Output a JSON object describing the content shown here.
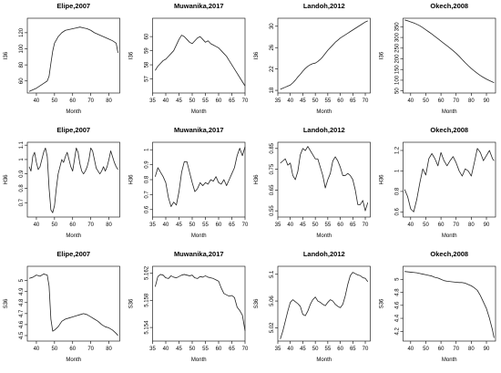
{
  "chart_data": [
    {
      "type": "line",
      "title": "Elipe,2007",
      "xlabel": "Month",
      "ylabel": "I36",
      "xlim": [
        35,
        86
      ],
      "ylim": [
        45,
        138
      ],
      "xticks": [
        40,
        50,
        60,
        70,
        80
      ],
      "yticks": [
        60,
        80,
        100,
        120
      ],
      "x": [
        36,
        38,
        40,
        42,
        44,
        46,
        47,
        48,
        49,
        50,
        52,
        54,
        56,
        58,
        60,
        62,
        64,
        66,
        68,
        70,
        72,
        74,
        76,
        78,
        80,
        82,
        84,
        85
      ],
      "y": [
        47,
        49,
        51,
        54,
        57,
        60,
        66,
        82,
        97,
        107,
        115,
        120,
        123,
        124,
        125,
        126,
        127,
        126,
        125,
        123,
        120,
        118,
        116,
        114,
        112,
        110,
        107,
        95
      ]
    },
    {
      "type": "line",
      "title": "Muwanika,2017",
      "xlabel": "Month",
      "ylabel": "I36",
      "xlim": [
        35,
        70
      ],
      "ylim": [
        56,
        61.3
      ],
      "xticks": [
        35,
        40,
        45,
        50,
        55,
        60,
        65,
        70
      ],
      "yticks": [
        57,
        58,
        59,
        60
      ],
      "x": [
        36,
        37,
        38,
        39,
        40,
        41,
        42,
        43,
        44,
        45,
        46,
        47,
        48,
        49,
        50,
        51,
        52,
        53,
        54,
        55,
        56,
        57,
        58,
        59,
        60,
        61,
        62,
        63,
        64,
        65,
        66,
        67,
        68,
        69,
        70
      ],
      "y": [
        57.6,
        57.9,
        58.1,
        58.3,
        58.4,
        58.6,
        58.8,
        59.0,
        59.4,
        59.8,
        60.1,
        60.0,
        59.8,
        59.6,
        59.5,
        59.7,
        59.9,
        60.0,
        59.8,
        59.6,
        59.7,
        59.5,
        59.4,
        59.3,
        59.2,
        59.0,
        58.8,
        58.6,
        58.3,
        58.0,
        57.7,
        57.4,
        57.1,
        56.8,
        56.5
      ]
    },
    {
      "type": "line",
      "title": "Landoh,2012",
      "xlabel": "Month",
      "ylabel": "I36",
      "xlim": [
        35,
        72
      ],
      "ylim": [
        17.5,
        31.5
      ],
      "xticks": [
        35,
        40,
        45,
        50,
        55,
        60,
        65,
        70
      ],
      "yticks": [
        18,
        22,
        26,
        30
      ],
      "x": [
        36,
        37,
        38,
        39,
        40,
        41,
        42,
        43,
        44,
        45,
        46,
        47,
        48,
        49,
        50,
        51,
        52,
        53,
        54,
        55,
        56,
        57,
        58,
        59,
        60,
        61,
        62,
        63,
        64,
        65,
        66,
        67,
        68,
        69,
        70,
        71
      ],
      "y": [
        18.2,
        18.4,
        18.6,
        18.8,
        19.0,
        19.4,
        19.9,
        20.5,
        21.0,
        21.6,
        22.1,
        22.5,
        22.8,
        23.0,
        23.1,
        23.4,
        23.8,
        24.3,
        24.9,
        25.5,
        26.0,
        26.5,
        27.0,
        27.4,
        27.8,
        28.1,
        28.4,
        28.7,
        29.0,
        29.3,
        29.6,
        29.9,
        30.2,
        30.5,
        30.8,
        31.0
      ]
    },
    {
      "type": "line",
      "title": "Okech,2008",
      "xlabel": "Month",
      "ylabel": "I36",
      "xlim": [
        35,
        96
      ],
      "ylim": [
        40,
        390
      ],
      "xticks": [
        40,
        50,
        60,
        70,
        80,
        90
      ],
      "yticks": [
        50,
        100,
        150,
        200,
        250,
        300,
        350
      ],
      "x": [
        36,
        38,
        40,
        42,
        44,
        46,
        48,
        50,
        52,
        54,
        56,
        58,
        60,
        62,
        64,
        66,
        68,
        70,
        72,
        74,
        76,
        78,
        80,
        82,
        84,
        86,
        88,
        90,
        92,
        94,
        95
      ],
      "y": [
        382,
        378,
        373,
        368,
        362,
        355,
        346,
        336,
        326,
        316,
        305,
        294,
        283,
        272,
        261,
        250,
        238,
        226,
        212,
        197,
        182,
        168,
        155,
        143,
        132,
        122,
        113,
        105,
        98,
        92,
        88
      ]
    },
    {
      "type": "line",
      "title": "Elipe,2007",
      "xlabel": "Month",
      "ylabel": "H36",
      "xlim": [
        35,
        86
      ],
      "ylim": [
        0.6,
        1.12
      ],
      "xticks": [
        40,
        50,
        60,
        70,
        80
      ],
      "yticks": [
        0.7,
        0.8,
        0.9,
        1.0,
        1.1
      ],
      "x": [
        36,
        37,
        38,
        39,
        40,
        41,
        42,
        43,
        44,
        45,
        46,
        47,
        48,
        49,
        50,
        51,
        52,
        53,
        54,
        55,
        56,
        57,
        58,
        59,
        60,
        61,
        62,
        63,
        64,
        65,
        66,
        67,
        68,
        69,
        70,
        71,
        72,
        73,
        74,
        75,
        76,
        77,
        78,
        79,
        80,
        81,
        82,
        83,
        84,
        85
      ],
      "y": [
        0.95,
        0.92,
        1.02,
        1.05,
        0.98,
        0.93,
        0.95,
        1.0,
        1.05,
        1.08,
        1.02,
        0.8,
        0.65,
        0.63,
        0.68,
        0.8,
        0.9,
        0.95,
        1.0,
        0.98,
        1.02,
        1.05,
        1.0,
        0.95,
        0.92,
        1.0,
        1.08,
        1.05,
        0.97,
        0.92,
        0.9,
        0.92,
        0.95,
        1.0,
        1.08,
        1.06,
        1.0,
        0.94,
        0.92,
        0.9,
        0.92,
        0.95,
        0.92,
        0.95,
        1.0,
        1.06,
        1.02,
        0.98,
        0.95,
        0.93
      ]
    },
    {
      "type": "line",
      "title": "Muwanika,2017",
      "xlabel": "Month",
      "ylabel": "H36",
      "xlim": [
        35,
        70
      ],
      "ylim": [
        0.55,
        1.05
      ],
      "xticks": [
        35,
        40,
        45,
        50,
        55,
        60,
        65,
        70
      ],
      "yticks": [
        0.6,
        0.7,
        0.8,
        0.9,
        1.0
      ],
      "x": [
        36,
        37,
        38,
        39,
        40,
        41,
        42,
        43,
        44,
        45,
        46,
        47,
        48,
        49,
        50,
        51,
        52,
        53,
        54,
        55,
        56,
        57,
        58,
        59,
        60,
        61,
        62,
        63,
        64,
        65,
        66,
        67,
        68,
        69,
        70
      ],
      "y": [
        0.82,
        0.88,
        0.85,
        0.82,
        0.78,
        0.68,
        0.62,
        0.65,
        0.63,
        0.72,
        0.85,
        0.92,
        0.92,
        0.85,
        0.78,
        0.72,
        0.74,
        0.78,
        0.76,
        0.78,
        0.77,
        0.8,
        0.79,
        0.82,
        0.78,
        0.77,
        0.8,
        0.76,
        0.8,
        0.84,
        0.88,
        0.96,
        1.01,
        0.96,
        1.02
      ]
    },
    {
      "type": "line",
      "title": "Landoh,2012",
      "xlabel": "Month",
      "ylabel": "H36",
      "xlim": [
        35,
        72
      ],
      "ylim": [
        0.52,
        0.88
      ],
      "xticks": [
        35,
        40,
        45,
        50,
        55,
        60,
        65,
        70
      ],
      "yticks": [
        0.55,
        0.65,
        0.75,
        0.85
      ],
      "x": [
        36,
        37,
        38,
        39,
        40,
        41,
        42,
        43,
        44,
        45,
        46,
        47,
        48,
        49,
        50,
        51,
        52,
        53,
        54,
        55,
        56,
        57,
        58,
        59,
        60,
        61,
        62,
        63,
        64,
        65,
        66,
        67,
        68,
        69,
        70,
        71
      ],
      "y": [
        0.78,
        0.79,
        0.8,
        0.77,
        0.78,
        0.72,
        0.7,
        0.74,
        0.82,
        0.85,
        0.84,
        0.86,
        0.84,
        0.82,
        0.8,
        0.8,
        0.76,
        0.72,
        0.66,
        0.7,
        0.73,
        0.79,
        0.81,
        0.79,
        0.76,
        0.72,
        0.72,
        0.73,
        0.72,
        0.7,
        0.65,
        0.58,
        0.58,
        0.6,
        0.55,
        0.59
      ]
    },
    {
      "type": "line",
      "title": "Okech,2008",
      "xlabel": "Month",
      "ylabel": "H36",
      "xlim": [
        35,
        96
      ],
      "ylim": [
        0.55,
        1.28
      ],
      "xticks": [
        40,
        50,
        60,
        70,
        80,
        90
      ],
      "yticks": [
        0.6,
        0.8,
        1.0,
        1.2
      ],
      "x": [
        36,
        38,
        40,
        42,
        44,
        46,
        48,
        50,
        52,
        54,
        56,
        58,
        60,
        62,
        64,
        66,
        68,
        70,
        72,
        74,
        76,
        78,
        80,
        82,
        84,
        86,
        88,
        90,
        92,
        94,
        95
      ],
      "y": [
        0.82,
        0.75,
        0.63,
        0.6,
        0.72,
        0.88,
        1.02,
        0.96,
        1.12,
        1.17,
        1.12,
        1.05,
        1.18,
        1.1,
        1.05,
        1.1,
        1.14,
        1.08,
        1.0,
        0.95,
        1.02,
        1.0,
        0.95,
        1.08,
        1.22,
        1.18,
        1.1,
        1.15,
        1.2,
        1.12,
        1.1
      ]
    },
    {
      "type": "line",
      "title": "Elipe,2007",
      "xlabel": "Month",
      "ylabel": "S36",
      "xlim": [
        35,
        86
      ],
      "ylim": [
        4.45,
        5.13
      ],
      "xticks": [
        40,
        50,
        60,
        70,
        80
      ],
      "yticks": [
        4.5,
        4.6,
        4.7,
        4.8,
        4.9,
        5.0
      ],
      "x": [
        36,
        38,
        40,
        42,
        44,
        46,
        47,
        48,
        49,
        50,
        52,
        54,
        56,
        58,
        60,
        62,
        64,
        66,
        68,
        70,
        72,
        74,
        76,
        78,
        80,
        82,
        84,
        85
      ],
      "y": [
        5.02,
        5.03,
        5.05,
        5.04,
        5.06,
        5.05,
        4.95,
        4.65,
        4.54,
        4.55,
        4.58,
        4.63,
        4.65,
        4.66,
        4.67,
        4.68,
        4.69,
        4.7,
        4.69,
        4.67,
        4.65,
        4.63,
        4.6,
        4.58,
        4.57,
        4.55,
        4.52,
        4.5
      ]
    },
    {
      "type": "line",
      "title": "Muwanika,2017",
      "xlabel": "Month",
      "ylabel": "S36",
      "xlim": [
        35,
        70
      ],
      "ylim": [
        5.152,
        5.163
      ],
      "xticks": [
        35,
        40,
        45,
        50,
        55,
        60,
        65,
        70
      ],
      "yticks": [
        5.154,
        5.158,
        5.162
      ],
      "x": [
        36,
        37,
        38,
        39,
        40,
        41,
        42,
        43,
        44,
        45,
        46,
        47,
        48,
        49,
        50,
        51,
        52,
        53,
        54,
        55,
        56,
        57,
        58,
        59,
        60,
        61,
        62,
        63,
        64,
        65,
        66,
        67,
        68,
        69,
        70
      ],
      "y": [
        5.16,
        5.1615,
        5.1618,
        5.1617,
        5.1613,
        5.1612,
        5.1616,
        5.1614,
        5.1613,
        5.1615,
        5.1617,
        5.1618,
        5.1617,
        5.1616,
        5.1617,
        5.1613,
        5.1612,
        5.1615,
        5.1614,
        5.1616,
        5.1614,
        5.1613,
        5.1612,
        5.161,
        5.1608,
        5.1598,
        5.159,
        5.1588,
        5.1586,
        5.1587,
        5.1584,
        5.157,
        5.1565,
        5.1558,
        5.1535
      ]
    },
    {
      "type": "line",
      "title": "Landoh,2012",
      "xlabel": "Month",
      "ylabel": "S36",
      "xlim": [
        35,
        72
      ],
      "ylim": [
        5.0,
        5.112
      ],
      "xticks": [
        35,
        40,
        45,
        50,
        55,
        60,
        65,
        70
      ],
      "yticks": [
        5.02,
        5.06,
        5.1
      ],
      "x": [
        36,
        37,
        38,
        39,
        40,
        41,
        42,
        43,
        44,
        45,
        46,
        47,
        48,
        49,
        50,
        51,
        52,
        53,
        54,
        55,
        56,
        57,
        58,
        59,
        60,
        61,
        62,
        63,
        64,
        65,
        66,
        67,
        68,
        69,
        70,
        71
      ],
      "y": [
        5.003,
        5.015,
        5.03,
        5.045,
        5.058,
        5.062,
        5.059,
        5.056,
        5.052,
        5.04,
        5.038,
        5.045,
        5.055,
        5.062,
        5.066,
        5.06,
        5.058,
        5.055,
        5.053,
        5.058,
        5.062,
        5.06,
        5.055,
        5.052,
        5.05,
        5.055,
        5.068,
        5.085,
        5.098,
        5.103,
        5.101,
        5.099,
        5.098,
        5.095,
        5.094,
        5.089
      ]
    },
    {
      "type": "line",
      "title": "Okech,2008",
      "xlabel": "Month",
      "ylabel": "S36",
      "xlim": [
        35,
        96
      ],
      "ylim": [
        4.05,
        5.2
      ],
      "xticks": [
        40,
        50,
        60,
        70,
        80,
        90
      ],
      "yticks": [
        4.2,
        4.4,
        4.6,
        4.8,
        5.0
      ],
      "x": [
        36,
        38,
        40,
        42,
        44,
        46,
        48,
        50,
        52,
        54,
        56,
        58,
        60,
        62,
        64,
        66,
        68,
        70,
        72,
        74,
        76,
        78,
        80,
        82,
        84,
        86,
        88,
        90,
        92,
        94,
        95
      ],
      "y": [
        5.12,
        5.115,
        5.11,
        5.105,
        5.1,
        5.09,
        5.08,
        5.07,
        5.06,
        5.05,
        5.03,
        5.02,
        5.0,
        4.98,
        4.97,
        4.965,
        4.96,
        4.955,
        4.95,
        4.95,
        4.94,
        4.92,
        4.9,
        4.87,
        4.83,
        4.75,
        4.65,
        4.55,
        4.4,
        4.22,
        4.1
      ]
    }
  ]
}
